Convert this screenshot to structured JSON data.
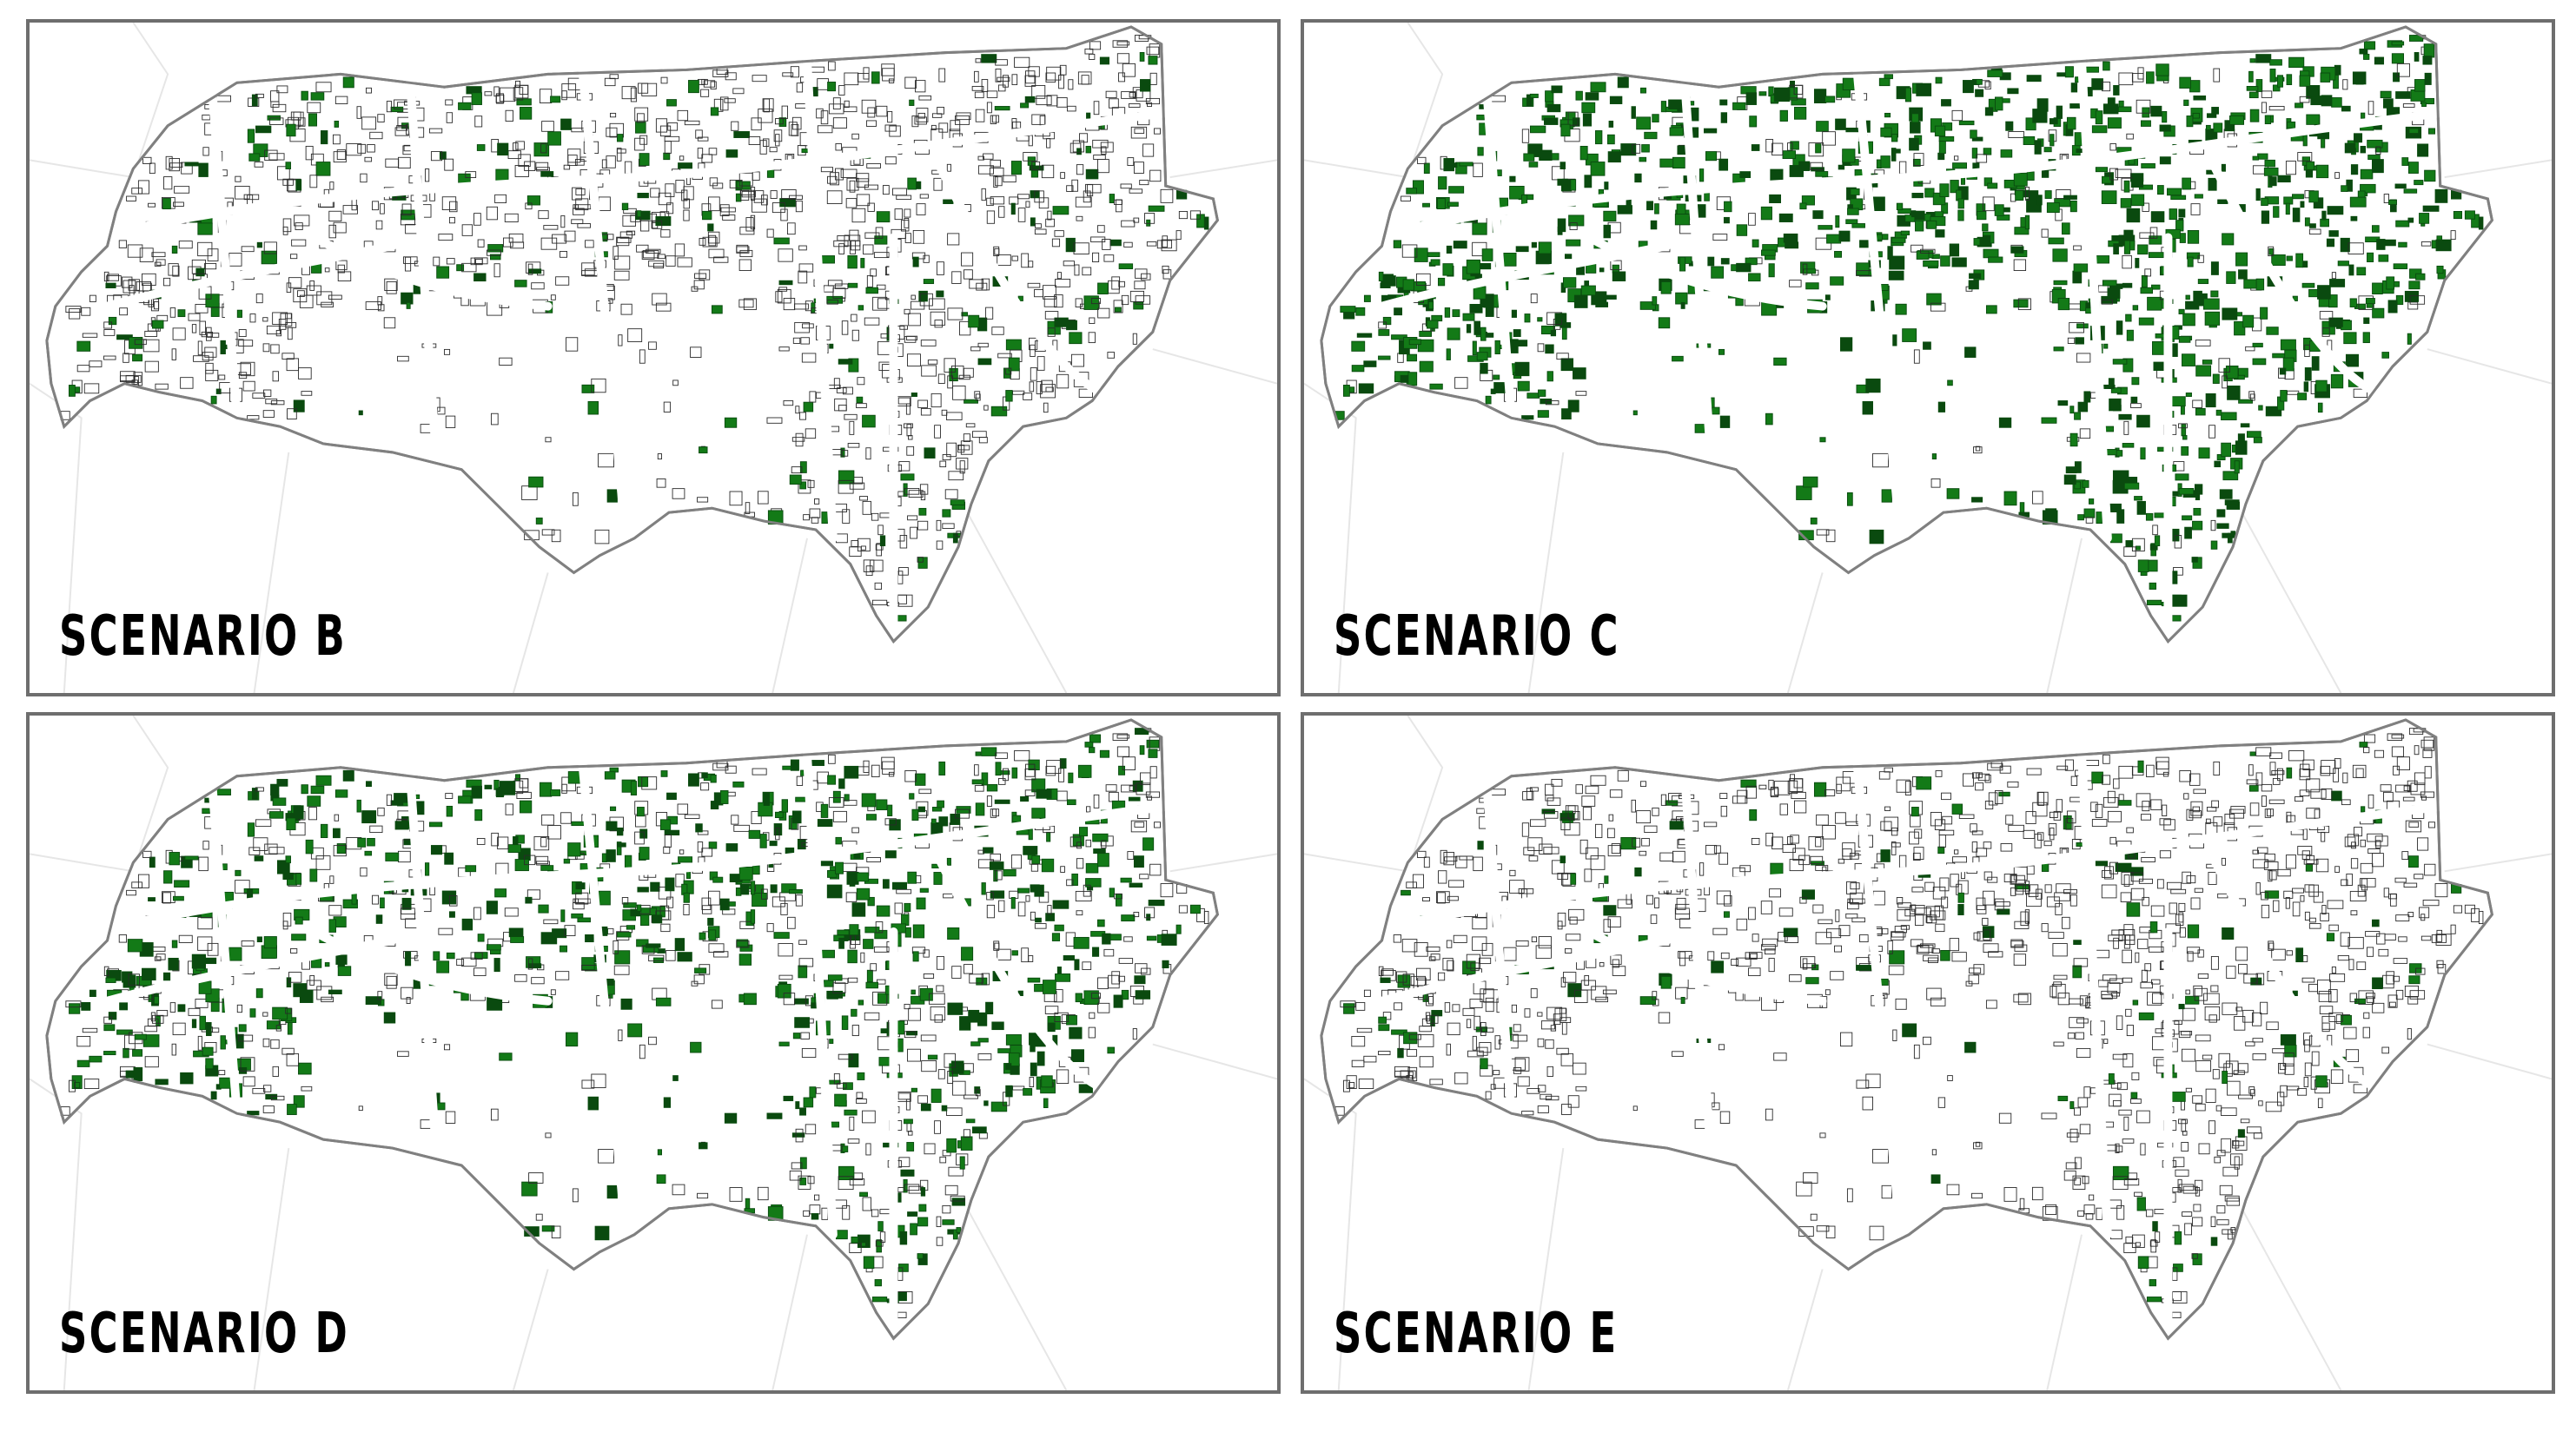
{
  "panels": [
    {
      "id": "b",
      "label": "SCENARIO B",
      "green_share": 0.18
    },
    {
      "id": "c",
      "label": "SCENARIO C",
      "green_share": 0.85
    },
    {
      "id": "d",
      "label": "SCENARIO D",
      "green_share": 0.55
    },
    {
      "id": "e",
      "label": "SCENARIO E",
      "green_share": 0.12
    }
  ],
  "colors": {
    "green": "#137a17",
    "dark_green": "#0a4a0f",
    "building_outline": "#2a2a2a",
    "boundary": "#808080",
    "faint_districts": "#e6e6e6"
  }
}
